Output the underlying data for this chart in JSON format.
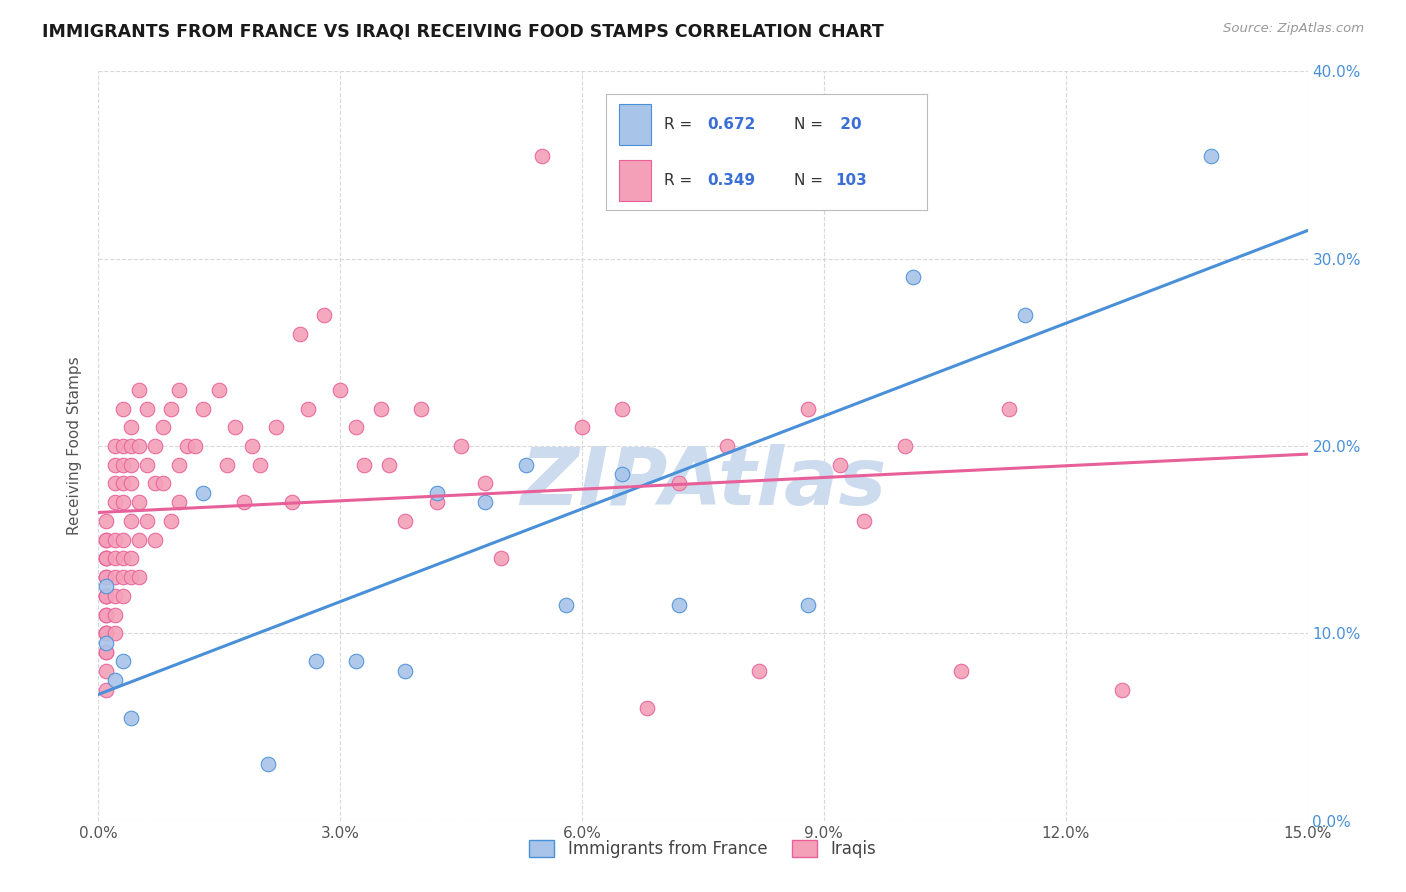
{
  "title": "IMMIGRANTS FROM FRANCE VS IRAQI RECEIVING FOOD STAMPS CORRELATION CHART",
  "source_text": "Source: ZipAtlas.com",
  "ylabel": "Receiving Food Stamps",
  "xlim": [
    0.0,
    0.15
  ],
  "ylim": [
    0.0,
    0.4
  ],
  "xticks": [
    0.0,
    0.03,
    0.06,
    0.09,
    0.12,
    0.15
  ],
  "yticks": [
    0.0,
    0.1,
    0.2,
    0.3,
    0.4
  ],
  "xtick_labels": [
    "0.0%",
    "3.0%",
    "6.0%",
    "9.0%",
    "12.0%",
    "15.0%"
  ],
  "ytick_labels_right": [
    "0.0%",
    "10.0%",
    "20.0%",
    "30.0%",
    "40.0%"
  ],
  "france_color": "#a8c4e8",
  "iraqi_color": "#f4a0b8",
  "france_line_color": "#4a90d9",
  "iraqi_line_color": "#e8609a",
  "france_R": 0.672,
  "france_N": 20,
  "iraqi_R": 0.349,
  "iraqi_N": 103,
  "legend_value_color": "#3a6fd8",
  "watermark": "ZIPAtlas",
  "watermark_color": "#ccdcee",
  "background_color": "#ffffff",
  "grid_color": "#d0d0d0",
  "france_scatter_x": [
    0.001,
    0.001,
    0.002,
    0.003,
    0.004,
    0.013,
    0.021,
    0.027,
    0.032,
    0.038,
    0.042,
    0.048,
    0.053,
    0.058,
    0.065,
    0.072,
    0.088,
    0.101,
    0.115,
    0.138
  ],
  "france_scatter_y": [
    0.125,
    0.095,
    0.075,
    0.085,
    0.055,
    0.175,
    0.03,
    0.085,
    0.085,
    0.08,
    0.175,
    0.17,
    0.19,
    0.115,
    0.185,
    0.115,
    0.115,
    0.29,
    0.27,
    0.355
  ],
  "iraqi_scatter_x": [
    0.001,
    0.001,
    0.001,
    0.001,
    0.001,
    0.001,
    0.001,
    0.001,
    0.001,
    0.001,
    0.001,
    0.001,
    0.001,
    0.001,
    0.001,
    0.001,
    0.001,
    0.001,
    0.001,
    0.001,
    0.002,
    0.002,
    0.002,
    0.002,
    0.002,
    0.002,
    0.002,
    0.002,
    0.002,
    0.002,
    0.003,
    0.003,
    0.003,
    0.003,
    0.003,
    0.003,
    0.003,
    0.003,
    0.003,
    0.004,
    0.004,
    0.004,
    0.004,
    0.004,
    0.004,
    0.004,
    0.005,
    0.005,
    0.005,
    0.005,
    0.005,
    0.006,
    0.006,
    0.006,
    0.007,
    0.007,
    0.007,
    0.008,
    0.008,
    0.009,
    0.009,
    0.01,
    0.01,
    0.01,
    0.011,
    0.012,
    0.013,
    0.015,
    0.016,
    0.017,
    0.018,
    0.019,
    0.02,
    0.022,
    0.024,
    0.025,
    0.026,
    0.028,
    0.03,
    0.032,
    0.033,
    0.035,
    0.036,
    0.038,
    0.04,
    0.042,
    0.045,
    0.048,
    0.05,
    0.055,
    0.06,
    0.065,
    0.068,
    0.072,
    0.078,
    0.082,
    0.088,
    0.092,
    0.095,
    0.1,
    0.107,
    0.113,
    0.127
  ],
  "iraqi_scatter_y": [
    0.12,
    0.14,
    0.1,
    0.13,
    0.11,
    0.09,
    0.15,
    0.08,
    0.16,
    0.07,
    0.12,
    0.14,
    0.1,
    0.13,
    0.11,
    0.09,
    0.15,
    0.12,
    0.1,
    0.14,
    0.15,
    0.18,
    0.13,
    0.1,
    0.2,
    0.17,
    0.12,
    0.14,
    0.19,
    0.11,
    0.19,
    0.22,
    0.15,
    0.12,
    0.17,
    0.2,
    0.14,
    0.13,
    0.18,
    0.21,
    0.18,
    0.14,
    0.2,
    0.16,
    0.13,
    0.19,
    0.23,
    0.17,
    0.13,
    0.2,
    0.15,
    0.22,
    0.19,
    0.16,
    0.2,
    0.15,
    0.18,
    0.21,
    0.18,
    0.22,
    0.16,
    0.19,
    0.23,
    0.17,
    0.2,
    0.2,
    0.22,
    0.23,
    0.19,
    0.21,
    0.17,
    0.2,
    0.19,
    0.21,
    0.17,
    0.26,
    0.22,
    0.27,
    0.23,
    0.21,
    0.19,
    0.22,
    0.19,
    0.16,
    0.22,
    0.17,
    0.2,
    0.18,
    0.14,
    0.355,
    0.21,
    0.22,
    0.06,
    0.18,
    0.2,
    0.08,
    0.22,
    0.19,
    0.16,
    0.2,
    0.08,
    0.22,
    0.07
  ]
}
